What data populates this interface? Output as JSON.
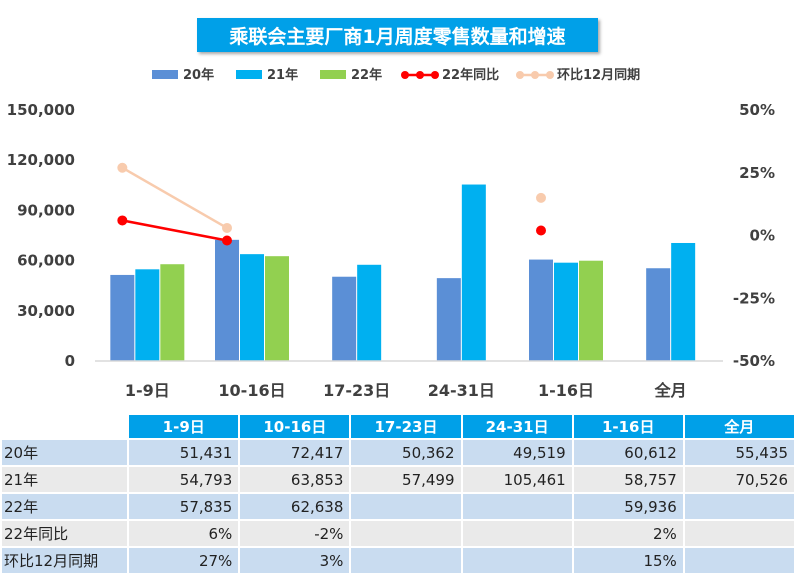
{
  "chart_data": {
    "type": "bar",
    "title": "乘联会主要厂商1月周度零售数量和增速",
    "categories": [
      "1-9日",
      "10-16日",
      "17-23日",
      "24-31日",
      "1-16日",
      "全月"
    ],
    "series": [
      {
        "name": "20年",
        "kind": "bar",
        "axis": "left",
        "color": "#5b8fd6",
        "values": [
          51431,
          72417,
          50362,
          49519,
          60612,
          55435
        ]
      },
      {
        "name": "21年",
        "kind": "bar",
        "axis": "left",
        "color": "#00b0f0",
        "values": [
          54793,
          63853,
          57499,
          105461,
          58757,
          70526
        ]
      },
      {
        "name": "22年",
        "kind": "bar",
        "axis": "left",
        "color": "#92d050",
        "values": [
          57835,
          62638,
          null,
          null,
          59936,
          null
        ]
      },
      {
        "name": "22年同比",
        "kind": "line",
        "axis": "right",
        "color": "#ff0000",
        "values": [
          6,
          -2,
          null,
          null,
          2,
          null
        ],
        "connect": [
          [
            0,
            1
          ]
        ]
      },
      {
        "name": "环比12月同期",
        "kind": "line",
        "axis": "right",
        "color": "#f8cbad",
        "values": [
          27,
          3,
          null,
          null,
          15,
          null
        ],
        "connect": [
          [
            0,
            1
          ]
        ]
      }
    ],
    "ylim": [
      0,
      150000
    ],
    "yticks": [
      "0",
      "30,000",
      "60,000",
      "90,000",
      "120,000",
      "150,000"
    ],
    "ylim_right": [
      -50,
      50
    ],
    "yticks_right": [
      "-50%",
      "-25%",
      "0%",
      "25%",
      "50%"
    ],
    "grid": false,
    "legend_position": "top"
  },
  "table": {
    "headers": [
      "1-9日",
      "10-16日",
      "17-23日",
      "24-31日",
      "1-16日",
      "全月"
    ],
    "rows": [
      {
        "label": "20年",
        "cells": [
          "51,431",
          "72,417",
          "50,362",
          "49,519",
          "60,612",
          "55,435"
        ]
      },
      {
        "label": "21年",
        "cells": [
          "54,793",
          "63,853",
          "57,499",
          "105,461",
          "58,757",
          "70,526"
        ]
      },
      {
        "label": "22年",
        "cells": [
          "57,835",
          "62,638",
          "",
          "",
          "59,936",
          ""
        ]
      },
      {
        "label": "22年同比",
        "cells": [
          "6%",
          "-2%",
          "",
          "",
          "2%",
          ""
        ]
      },
      {
        "label": "环比12月同期",
        "cells": [
          "27%",
          "3%",
          "",
          "",
          "15%",
          ""
        ]
      }
    ]
  }
}
